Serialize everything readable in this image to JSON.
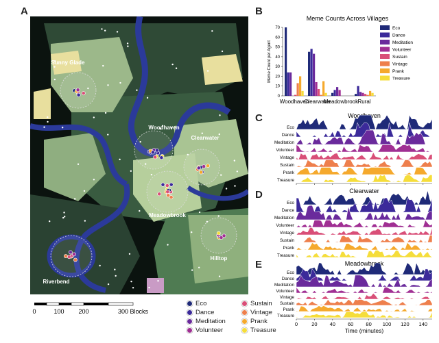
{
  "panels": {
    "a": "A",
    "b": "B",
    "c": "C",
    "d": "D",
    "e": "E"
  },
  "map": {
    "villages": [
      "Sunny Glade",
      "Woodhaven",
      "Clearwater",
      "Meadowbrook",
      "Hilltop",
      "Riverbend"
    ],
    "scale_ticks": [
      "0",
      "100",
      "200",
      "300 Blocks"
    ]
  },
  "legend": [
    {
      "name": "Eco",
      "color": "#1f2a78"
    },
    {
      "name": "Dance",
      "color": "#3b2a9a"
    },
    {
      "name": "Meditation",
      "color": "#6a2a9c"
    },
    {
      "name": "Volunteer",
      "color": "#a02f93"
    },
    {
      "name": "Sustain",
      "color": "#d94f78"
    },
    {
      "name": "Vintage",
      "color": "#ee7f4c"
    },
    {
      "name": "Prank",
      "color": "#f5a92d"
    },
    {
      "name": "Treasure",
      "color": "#f5dd3a"
    }
  ],
  "chart_data": [
    {
      "type": "bar",
      "title": "Meme Counts Across Villages",
      "ylabel": "Meme Count per Agent",
      "xlabel": "",
      "ylim": [
        0,
        70
      ],
      "yticks": [
        "0",
        "10",
        "20",
        "30",
        "40",
        "50",
        "60",
        "70"
      ],
      "categories": [
        "Woodhaven",
        "Clearwater",
        "Meadowbrook",
        "Rural"
      ],
      "series": [
        {
          "name": "Eco",
          "values": [
            70,
            45,
            3,
            2
          ]
        },
        {
          "name": "Dance",
          "values": [
            24,
            48,
            6,
            10
          ]
        },
        {
          "name": "Meditation",
          "values": [
            24,
            43,
            9,
            4
          ]
        },
        {
          "name": "Volunteer",
          "values": [
            0,
            14,
            6,
            3
          ]
        },
        {
          "name": "Sustain",
          "values": [
            1,
            7,
            0,
            2
          ]
        },
        {
          "name": "Vintage",
          "values": [
            13,
            1,
            0,
            1
          ]
        },
        {
          "name": "Prank",
          "values": [
            20,
            15,
            0,
            5
          ]
        },
        {
          "name": "Treasure",
          "values": [
            5,
            3,
            0,
            3
          ]
        }
      ],
      "legend_position": "right"
    },
    {
      "type": "area",
      "title": "Woodhaven",
      "series_labels": [
        "Eco",
        "Dance",
        "Meditation",
        "Volunteer",
        "Vintage",
        "Sustain",
        "Prank",
        "Treasure"
      ],
      "xlim": [
        0,
        150
      ]
    },
    {
      "type": "area",
      "title": "Clearwater",
      "series_labels": [
        "Eco",
        "Dance",
        "Meditation",
        "Volunteer",
        "Vintage",
        "Sustain",
        "Prank",
        "Treasure"
      ],
      "xlim": [
        0,
        150
      ]
    },
    {
      "type": "area",
      "title": "Meadowbrook",
      "series_labels": [
        "Eco",
        "Dance",
        "Meditation",
        "Volunteer",
        "Vintage",
        "Sustain",
        "Prank",
        "Treasure"
      ],
      "xlim": [
        0,
        150
      ],
      "xticks": [
        "0",
        "20",
        "40",
        "60",
        "80",
        "100",
        "120",
        "140"
      ],
      "xlabel": "Time (minutes)"
    }
  ]
}
